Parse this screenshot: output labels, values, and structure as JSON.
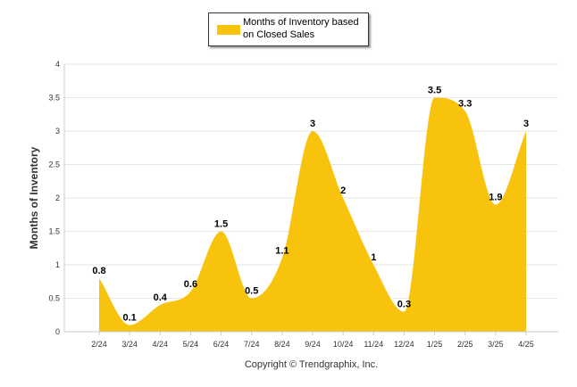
{
  "chart_data": {
    "type": "area",
    "categories": [
      "2/24",
      "3/24",
      "4/24",
      "5/24",
      "6/24",
      "7/24",
      "8/24",
      "9/24",
      "10/24",
      "11/24",
      "12/24",
      "1/25",
      "2/25",
      "3/25",
      "4/25"
    ],
    "series": [
      {
        "name": "Months of Inventory based on Closed Sales",
        "values": [
          0.8,
          0.1,
          0.4,
          0.6,
          1.5,
          0.5,
          1.1,
          3,
          2,
          1,
          0.3,
          3.5,
          3.3,
          1.9,
          3
        ],
        "color": "#f8c30c"
      }
    ],
    "ylabel": "Months of Inventory",
    "ylim": [
      0,
      4
    ],
    "yticks": [
      0,
      0.5,
      1,
      1.5,
      2,
      2.5,
      3,
      3.5,
      4
    ],
    "grid": true,
    "legend": "top-center",
    "footer": "Copyright © Trendgraphix, Inc."
  }
}
